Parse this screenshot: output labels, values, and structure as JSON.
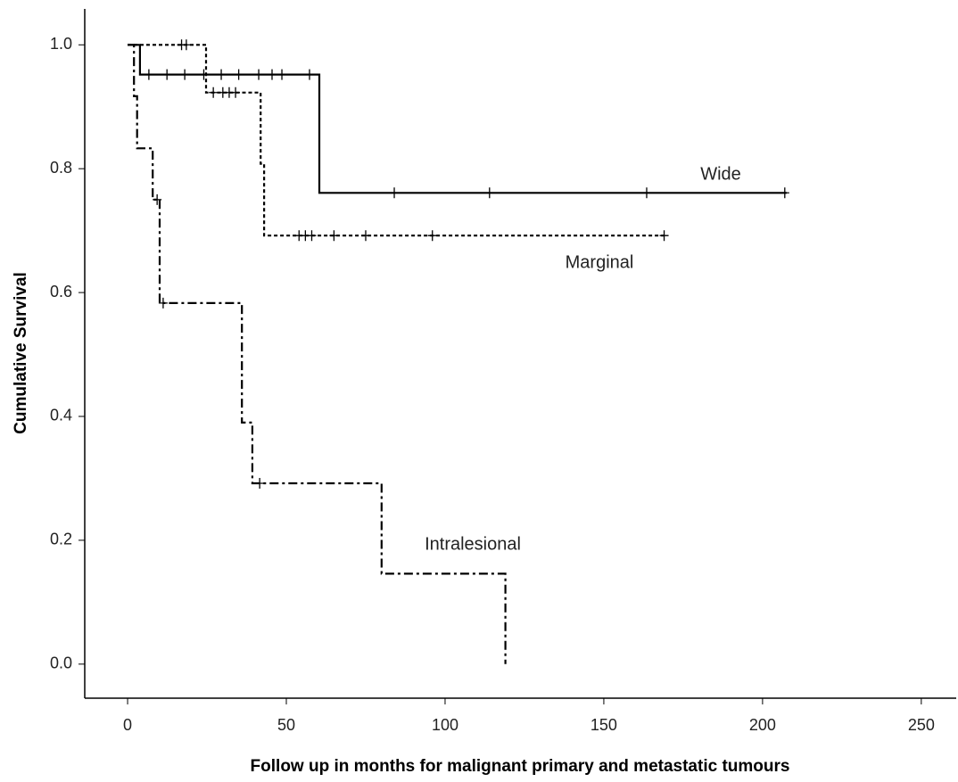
{
  "chart_data": {
    "type": "step",
    "x_label": "Follow up in months for malignant primary and metastatic tumours",
    "y_label": "Cumulative Survival",
    "xlim": [
      -13.5,
      261
    ],
    "ylim": [
      -0.055,
      1.058
    ],
    "xticks": [
      0,
      50,
      100,
      150,
      200,
      250
    ],
    "yticks": [
      {
        "value": 0,
        "label": "0.0"
      },
      0.2,
      0.4,
      0.6,
      0.8,
      {
        "value": 1,
        "label": "1.0"
      }
    ],
    "grid": false,
    "series": [
      {
        "name": "Wide",
        "color": "#000000",
        "dash": "solid",
        "x": [
          0,
          3.9,
          3.9,
          60.4,
          60.4,
          207.6
        ],
        "values": [
          1,
          1,
          0.952,
          0.952,
          0.761,
          0.761
        ],
        "censored": {
          "x": [
            6.7,
            12.4,
            18,
            24,
            29.5,
            35,
            41.3,
            45.5,
            48.6,
            57.3,
            84,
            114,
            163.5,
            207
          ],
          "values": [
            0.952,
            0.952,
            0.952,
            0.952,
            0.952,
            0.952,
            0.952,
            0.952,
            0.952,
            0.952,
            0.761,
            0.761,
            0.761,
            0.761
          ]
        }
      },
      {
        "name": "Marginal",
        "color": "#000000",
        "dash": "dotted",
        "x": [
          0,
          24.7,
          24.7,
          41.9,
          41.9,
          43,
          43,
          169
        ],
        "values": [
          1,
          1,
          0.923,
          0.923,
          0.808,
          0.808,
          0.692,
          0.692
        ],
        "censored": {
          "x": [
            17,
            18.5,
            27,
            30,
            32,
            34,
            54,
            56,
            58,
            65,
            75,
            96,
            169
          ],
          "values": [
            1,
            1,
            0.923,
            0.923,
            0.923,
            0.923,
            0.692,
            0.692,
            0.692,
            0.692,
            0.692,
            0.692,
            0.692
          ]
        }
      },
      {
        "name": "Intralesional",
        "color": "#000000",
        "dash": "dashdot",
        "x": [
          0,
          2,
          2,
          3,
          3,
          7.9,
          7.9,
          10.1,
          10.1,
          36,
          36,
          39.3,
          39.3,
          80,
          80,
          119,
          119
        ],
        "values": [
          1,
          1,
          0.917,
          0.917,
          0.833,
          0.833,
          0.75,
          0.75,
          0.583,
          0.583,
          0.39,
          0.39,
          0.292,
          0.292,
          0.146,
          0.146,
          0
        ],
        "censored": {
          "x": [
            9.3,
            11.2,
            41.6
          ],
          "values": [
            0.75,
            0.583,
            0.292
          ]
        }
      }
    ]
  }
}
